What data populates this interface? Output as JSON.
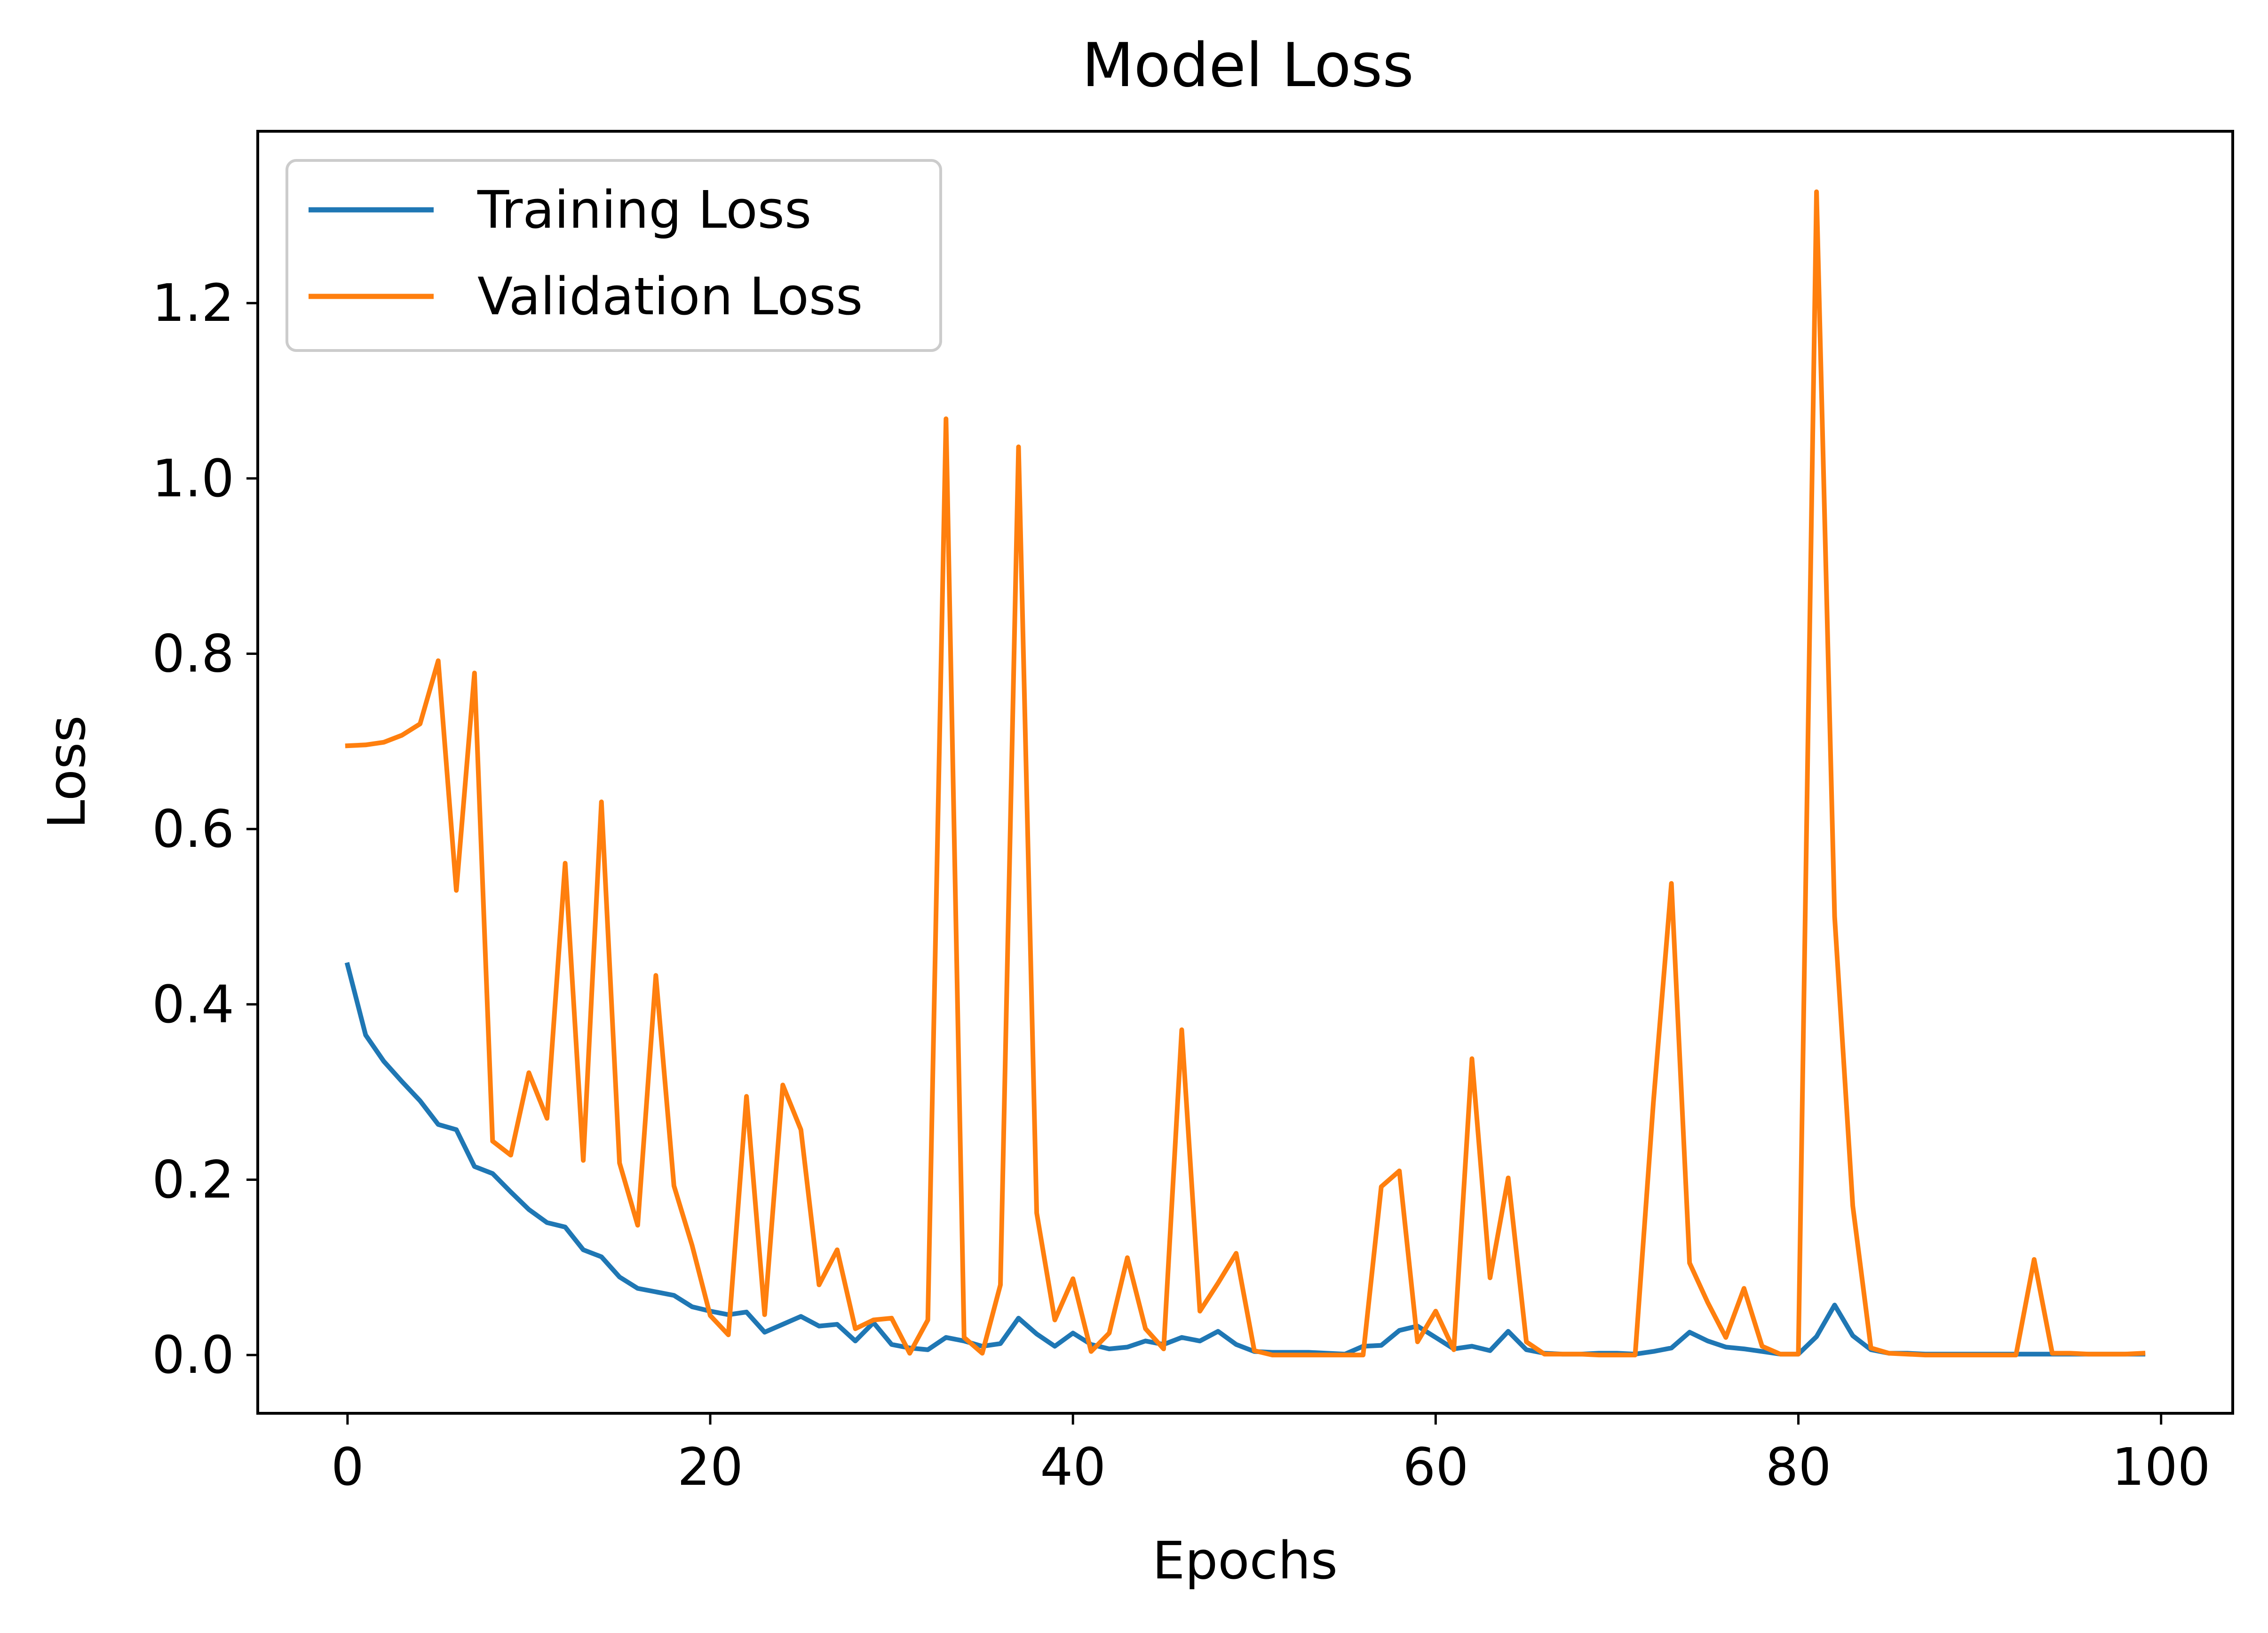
{
  "chart_data": {
    "type": "line",
    "title": "Model Loss",
    "xlabel": "Epochs",
    "ylabel": "Loss",
    "xlim": [
      -4.95,
      103.95
    ],
    "ylim": [
      -0.0665,
      1.396
    ],
    "xticks": [
      0,
      20,
      40,
      60,
      80,
      100
    ],
    "xtick_labels": [
      "0",
      "20",
      "40",
      "60",
      "80",
      "100"
    ],
    "yticks": [
      0.0,
      0.2,
      0.4,
      0.6,
      0.8,
      1.0,
      1.2
    ],
    "ytick_labels": [
      "0.0",
      "0.2",
      "0.4",
      "0.6",
      "0.8",
      "1.0",
      "1.2"
    ],
    "grid": false,
    "legend": "upper-left",
    "x": [
      0,
      1,
      2,
      3,
      4,
      5,
      6,
      7,
      8,
      9,
      10,
      11,
      12,
      13,
      14,
      15,
      16,
      17,
      18,
      19,
      20,
      21,
      22,
      23,
      24,
      25,
      26,
      27,
      28,
      29,
      30,
      31,
      32,
      33,
      34,
      35,
      36,
      37,
      38,
      39,
      40,
      41,
      42,
      43,
      44,
      45,
      46,
      47,
      48,
      49,
      50,
      51,
      52,
      53,
      54,
      55,
      56,
      57,
      58,
      59,
      60,
      61,
      62,
      63,
      64,
      65,
      66,
      67,
      68,
      69,
      70,
      71,
      72,
      73,
      74,
      75,
      76,
      77,
      78,
      79,
      80,
      81,
      82,
      83,
      84,
      85,
      86,
      87,
      88,
      89,
      90,
      91,
      92,
      93,
      94,
      95,
      96,
      97,
      98,
      99
    ],
    "series": [
      {
        "name": "Training Loss",
        "color": "#1f77b4",
        "values": [
          0.445,
          0.365,
          0.335,
          0.312,
          0.29,
          0.263,
          0.257,
          0.215,
          0.207,
          0.186,
          0.166,
          0.151,
          0.146,
          0.12,
          0.112,
          0.089,
          0.076,
          0.072,
          0.068,
          0.055,
          0.05,
          0.046,
          0.049,
          0.026,
          0.035,
          0.044,
          0.033,
          0.035,
          0.016,
          0.037,
          0.012,
          0.008,
          0.006,
          0.02,
          0.016,
          0.01,
          0.013,
          0.042,
          0.024,
          0.01,
          0.025,
          0.012,
          0.007,
          0.009,
          0.016,
          0.012,
          0.02,
          0.016,
          0.027,
          0.012,
          0.004,
          0.003,
          0.003,
          0.003,
          0.002,
          0.001,
          0.01,
          0.011,
          0.028,
          0.033,
          0.02,
          0.007,
          0.01,
          0.005,
          0.027,
          0.006,
          0.002,
          0.001,
          0.001,
          0.002,
          0.002,
          0.001,
          0.004,
          0.008,
          0.026,
          0.016,
          0.009,
          0.007,
          0.004,
          0.001,
          0.001,
          0.021,
          0.057,
          0.022,
          0.006,
          0.002,
          0.002,
          0.001,
          0.001,
          0.001,
          0.001,
          0.001,
          0.001,
          0.001,
          0.001,
          0.001,
          0.001,
          0.001,
          0.001,
          0.001
        ]
      },
      {
        "name": "Validation Loss",
        "color": "#ff7f0e",
        "values": [
          0.695,
          0.696,
          0.699,
          0.707,
          0.72,
          0.792,
          0.53,
          0.778,
          0.244,
          0.228,
          0.322,
          0.27,
          0.561,
          0.222,
          0.631,
          0.219,
          0.148,
          0.433,
          0.193,
          0.125,
          0.045,
          0.023,
          0.295,
          0.046,
          0.308,
          0.257,
          0.08,
          0.12,
          0.03,
          0.04,
          0.042,
          0.002,
          0.04,
          1.068,
          0.02,
          0.002,
          0.08,
          1.036,
          0.162,
          0.04,
          0.087,
          0.004,
          0.025,
          0.111,
          0.03,
          0.007,
          0.371,
          0.05,
          0.082,
          0.116,
          0.005,
          0.0,
          0.0,
          0.0,
          0.0,
          0.0,
          0.0,
          0.192,
          0.21,
          0.015,
          0.05,
          0.006,
          0.338,
          0.088,
          0.202,
          0.015,
          0.001,
          0.001,
          0.001,
          0.0,
          0.0,
          0.0,
          0.287,
          0.538,
          0.105,
          0.06,
          0.02,
          0.076,
          0.01,
          0.001,
          0.001,
          1.327,
          0.5,
          0.17,
          0.008,
          0.002,
          0.001,
          0.0,
          0.0,
          0.0,
          0.0,
          0.0,
          0.0,
          0.109,
          0.002,
          0.002,
          0.001,
          0.001,
          0.001,
          0.002
        ]
      }
    ]
  }
}
